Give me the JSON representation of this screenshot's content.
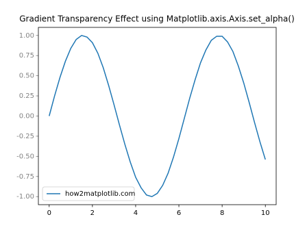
{
  "chart_data": {
    "type": "line",
    "title": "Gradient Transparency Effect using Matplotlib.axis.Axis.set_alpha()",
    "x": [
      0,
      0.25,
      0.5,
      0.75,
      1,
      1.25,
      1.5,
      1.75,
      2,
      2.25,
      2.5,
      2.75,
      3,
      3.25,
      3.5,
      3.75,
      4,
      4.25,
      4.5,
      4.75,
      5,
      5.25,
      5.5,
      5.75,
      6,
      6.25,
      6.5,
      6.75,
      7,
      7.25,
      7.5,
      7.75,
      8,
      8.25,
      8.5,
      8.75,
      9,
      9.25,
      9.5,
      9.75,
      10
    ],
    "series": [
      {
        "name": "how2matplotlib.com",
        "color": "#1f77b4",
        "values": [
          0,
          0.25,
          0.48,
          0.68,
          0.84,
          0.95,
          1.0,
          0.98,
          0.91,
          0.78,
          0.6,
          0.38,
          0.14,
          -0.11,
          -0.35,
          -0.57,
          -0.76,
          -0.89,
          -0.98,
          -1.0,
          -0.96,
          -0.86,
          -0.71,
          -0.51,
          -0.28,
          -0.03,
          0.22,
          0.45,
          0.66,
          0.82,
          0.94,
          0.99,
          0.99,
          0.92,
          0.8,
          0.62,
          0.41,
          0.17,
          -0.08,
          -0.32,
          -0.54
        ]
      }
    ],
    "xlim": [
      -0.5,
      10.5
    ],
    "xticks": [
      0,
      2,
      4,
      6,
      8,
      10
    ],
    "ylim": [
      -1.1,
      1.1
    ],
    "yticks": [
      {
        "value": -1,
        "label": "-1.00"
      },
      {
        "value": -0.75,
        "label": "-0.75"
      },
      {
        "value": -0.5,
        "label": "-0.50"
      },
      {
        "value": -0.25,
        "label": "-0.25"
      },
      {
        "value": 0,
        "label": "0.00"
      },
      {
        "value": 0.25,
        "label": "0.25"
      },
      {
        "value": 0.5,
        "label": "0.50"
      },
      {
        "value": 0.75,
        "label": "0.75"
      },
      {
        "value": 1,
        "label": "1.00"
      }
    ],
    "legend": "lower left"
  }
}
